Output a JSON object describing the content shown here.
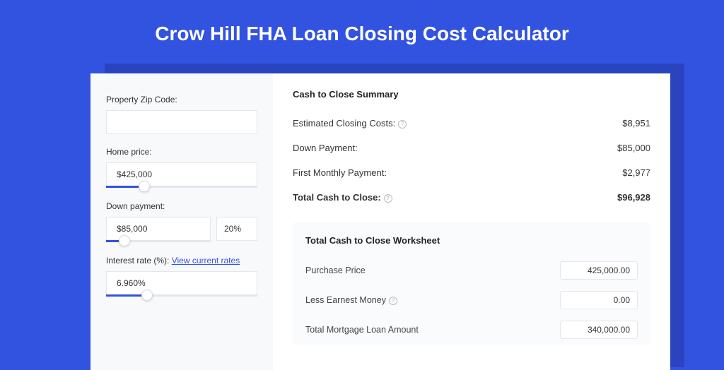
{
  "colors": {
    "page_bg": "#3252e0",
    "shadow_panel": "#2a44c0",
    "panel_bg": "#ffffff",
    "left_col_bg": "#f8f9fb",
    "input_border": "#e3e6ed",
    "slider_fill": "#3252e0",
    "link": "#3252e0",
    "text": "#333333"
  },
  "title": "Crow Hill FHA Loan Closing Cost Calculator",
  "left": {
    "zip_label": "Property Zip Code:",
    "zip_value": "",
    "home_price_label": "Home price:",
    "home_price_value": "$425,000",
    "down_payment_label": "Down payment:",
    "down_payment_value": "$85,000",
    "down_payment_pct": "20%",
    "interest_label_prefix": "Interest rate (%): ",
    "interest_link": "View current rates",
    "interest_value": "6.960%"
  },
  "summary": {
    "heading": "Cash to Close Summary",
    "rows": [
      {
        "label": "Estimated Closing Costs:",
        "help": true,
        "value": "$8,951",
        "bold": false
      },
      {
        "label": "Down Payment:",
        "help": false,
        "value": "$85,000",
        "bold": false
      },
      {
        "label": "First Monthly Payment:",
        "help": false,
        "value": "$2,977",
        "bold": false
      },
      {
        "label": "Total Cash to Close:",
        "help": true,
        "value": "$96,928",
        "bold": true
      }
    ]
  },
  "worksheet": {
    "heading": "Total Cash to Close Worksheet",
    "rows": [
      {
        "label": "Purchase Price",
        "help": false,
        "value": "425,000.00"
      },
      {
        "label": "Less Earnest Money",
        "help": true,
        "value": "0.00"
      },
      {
        "label": "Total Mortgage Loan Amount",
        "help": false,
        "value": "340,000.00"
      }
    ]
  }
}
